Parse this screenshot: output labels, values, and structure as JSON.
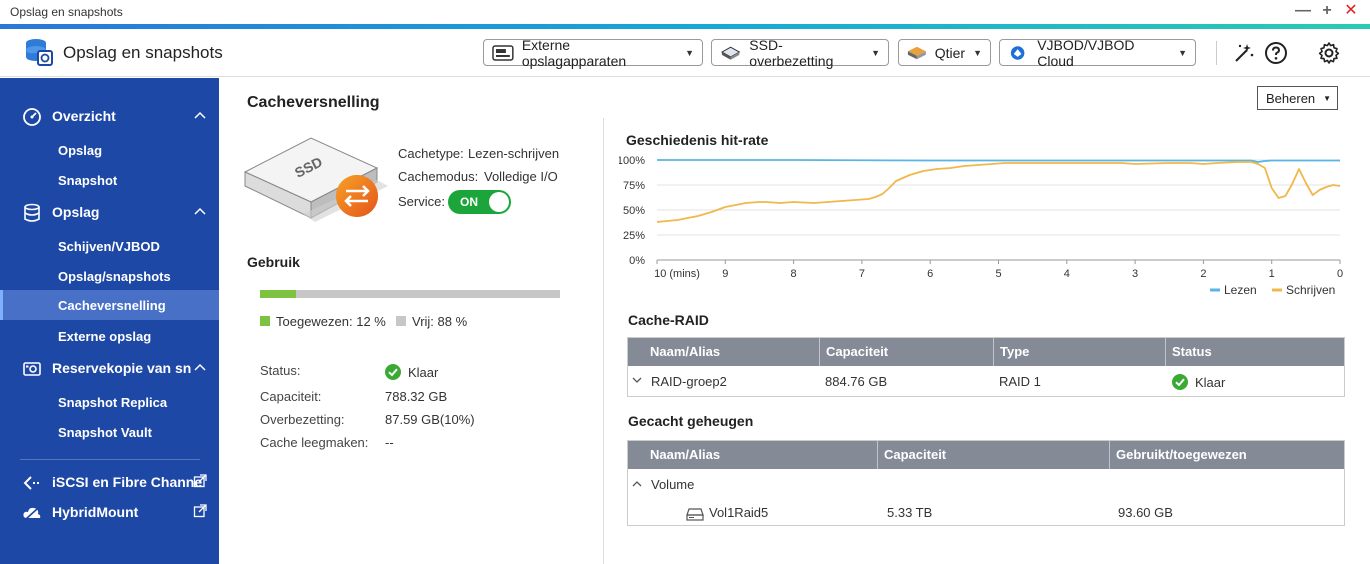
{
  "window": {
    "title": "Opslag en snapshots"
  },
  "header": {
    "app_title": "Opslag en snapshots",
    "buttons": [
      {
        "label": "Externe opslagapparaten"
      },
      {
        "label": "SSD-overbezetting"
      },
      {
        "label": "Qtier"
      },
      {
        "label": "VJBOD/VJBOD Cloud"
      }
    ]
  },
  "sidebar": {
    "overzicht": {
      "label": "Overzicht",
      "items": [
        "Opslag",
        "Snapshot"
      ]
    },
    "opslag": {
      "label": "Opslag",
      "items": [
        "Schijven/VJBOD",
        "Opslag/snapshots",
        "Cacheversnelling",
        "Externe opslag"
      ]
    },
    "reservekopie": {
      "label": "Reservekopie van sn...",
      "items": [
        "Snapshot Replica",
        "Snapshot Vault"
      ]
    },
    "iscsi": {
      "label": "iSCSI en Fibre Channel"
    },
    "hybridmount": {
      "label": "HybridMount"
    }
  },
  "main": {
    "title": "Cacheversnelling",
    "manage_label": "Beheren",
    "ssd_label": "SSD",
    "cachetype_label": "Cachetype:",
    "cachetype_value": "Lezen-schrijven",
    "cachemodus_label": "Cachemodus:",
    "cachemodus_value": "Volledige I/O",
    "service_label": "Service:",
    "service_value": "ON",
    "usage": {
      "title": "Gebruik",
      "allocated_fraction": 0.12,
      "allocated_label": "Toegewezen: 12 %",
      "free_label": "Vrij: 88 %"
    },
    "stats": {
      "status_label": "Status:",
      "status_value": "Klaar",
      "capacity_label": "Capaciteit:",
      "capacity_value": "788.32 GB",
      "overprov_label": "Overbezetting:",
      "overprov_value": "87.59 GB(10%)",
      "flush_label": "Cache leegmaken:",
      "flush_value": "--"
    }
  },
  "chart_data": {
    "type": "line",
    "title": "Geschiedenis hit-rate",
    "x_ticks": [
      "10 (mins)",
      "9",
      "8",
      "7",
      "6",
      "5",
      "4",
      "3",
      "2",
      "1",
      "0"
    ],
    "y_ticks": [
      "100%",
      "75%",
      "50%",
      "25%",
      "0%"
    ],
    "ylim": [
      0,
      100
    ],
    "xlim": [
      10,
      0
    ],
    "legend_position": "bottom-right",
    "series": [
      {
        "name": "Lezen",
        "color": "#5ab4e6",
        "x": [
          10,
          8,
          6,
          4,
          2,
          1.3,
          1.2,
          1.1,
          1,
          0.5,
          0
        ],
        "y": [
          100,
          100,
          99.5,
          99.5,
          99.5,
          99.5,
          98,
          99,
          99.5,
          99.5,
          99.5
        ]
      },
      {
        "name": "Schrijven",
        "color": "#f0b84a",
        "x": [
          10,
          9.7,
          9.4,
          9.2,
          9.0,
          8.7,
          8.5,
          8.4,
          8.2,
          8.0,
          7.7,
          7.5,
          7.3,
          7.1,
          6.9,
          6.8,
          6.7,
          6.6,
          6.5,
          6.4,
          6.3,
          6.1,
          5.9,
          5.7,
          5.5,
          5.3,
          5.1,
          4.9,
          4.5,
          4.0,
          3.5,
          3.2,
          3.0,
          2.5,
          2.2,
          2.0,
          1.8,
          1.5,
          1.3,
          1.2,
          1.1,
          1.0,
          0.9,
          0.8,
          0.7,
          0.6,
          0.5,
          0.4,
          0.3,
          0.2,
          0.1,
          0
        ],
        "y": [
          38,
          40,
          44,
          48,
          53,
          57,
          58,
          58,
          57,
          58,
          57,
          58,
          59,
          60,
          61,
          63,
          66,
          72,
          79,
          82,
          85,
          89,
          91,
          92,
          94,
          95,
          96,
          97,
          97,
          97,
          97,
          97,
          96,
          97,
          97,
          96,
          97,
          98,
          98,
          96,
          92,
          72,
          62,
          64,
          76,
          91,
          77,
          65,
          70,
          73,
          75,
          74
        ]
      }
    ]
  },
  "cache_raid": {
    "title": "Cache-RAID",
    "columns": [
      "Naam/Alias",
      "Capaciteit",
      "Type",
      "Status"
    ],
    "rows": [
      {
        "name": "RAID-groep2",
        "capacity": "884.76 GB",
        "type": "RAID 1",
        "status": "Klaar"
      }
    ]
  },
  "cached_memory": {
    "title": "Gecacht geheugen",
    "columns": [
      "Naam/Alias",
      "Capaciteit",
      "Gebruikt/toegewezen"
    ],
    "group": "Volume",
    "rows": [
      {
        "name": "Vol1Raid5",
        "capacity": "5.33 TB",
        "used": "93.60 GB"
      }
    ]
  }
}
